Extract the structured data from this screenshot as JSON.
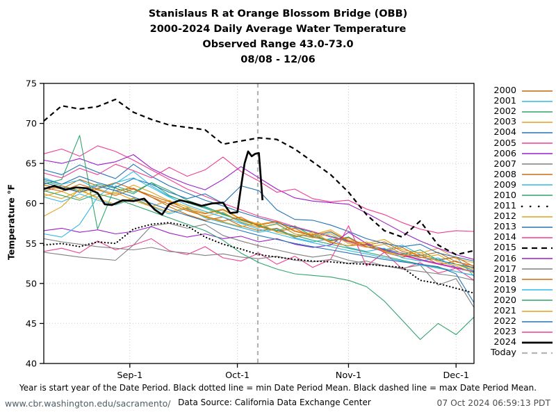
{
  "title": {
    "line1": "Stanislaus R at Orange Blossom Bridge (OBB)",
    "line2": "2000-2024 Daily Average Water Temperature",
    "line3": "Observed Range 43.0-73.0",
    "line4": "08/08 - 12/06"
  },
  "footer": {
    "footnote": "Year is start year of the Date Period. Black dotted line = min Date Period Mean. Black dashed line = max Date Period Mean.",
    "site_url": "www.cbr.washington.edu/sacramento/",
    "data_source": "Data Source: California Data Exchange Center",
    "timestamp": "07 Oct 2024 06:59:13 PDT"
  },
  "chart_data": {
    "type": "line",
    "x_axis": {
      "start_label": "08/08",
      "end_label": "12/06",
      "total_days": 120,
      "ticks": [
        {
          "label": "Sep-1",
          "day": 24
        },
        {
          "label": "Oct-1",
          "day": 54
        },
        {
          "label": "Nov-1",
          "day": 85
        },
        {
          "label": "Dec-1",
          "day": 115
        }
      ]
    },
    "y_axis": {
      "label": "Temperature °F",
      "min": 40,
      "max": 75,
      "ticks": [
        75,
        70,
        65,
        60,
        55,
        50,
        45,
        40
      ],
      "gridlines": [
        70,
        65,
        60,
        55,
        50,
        45
      ]
    },
    "grid_color": "#c9c9c9",
    "today": {
      "label": "Today",
      "day": 59.7,
      "color": "#b3b3b3",
      "style": "dashed",
      "width": 2.2
    },
    "x_days": [
      0,
      5,
      10,
      15,
      20,
      25,
      30,
      35,
      40,
      45,
      50,
      55,
      60,
      65,
      70,
      75,
      80,
      85,
      90,
      95,
      100,
      105,
      110,
      115,
      120
    ],
    "series": [
      {
        "name": "2000",
        "color": "#c4660a",
        "style": "solid",
        "width": 1.1,
        "values": [
          62.3,
          61.8,
          63.0,
          62.2,
          61.6,
          61.9,
          60.8,
          59.6,
          58.6,
          57.9,
          58.3,
          57.2,
          56.6,
          56.9,
          55.8,
          56.2,
          55.1,
          54.7,
          54.9,
          53.9,
          53.3,
          53.6,
          52.4,
          52.8,
          51.9
        ]
      },
      {
        "name": "2001",
        "color": "#2eb8e6",
        "style": "solid",
        "width": 1.1,
        "values": [
          63.2,
          62.4,
          62.9,
          61.8,
          62.5,
          64.0,
          62.2,
          60.9,
          60.2,
          59.5,
          58.8,
          57.6,
          57.0,
          57.5,
          56.2,
          55.8,
          56.4,
          55.2,
          54.6,
          54.2,
          54.8,
          53.6,
          53.0,
          53.3,
          50.9
        ]
      },
      {
        "name": "2002",
        "color": "#2fa46c",
        "style": "solid",
        "width": 1.1,
        "values": [
          62.8,
          62.2,
          61.6,
          62.4,
          61.9,
          61.2,
          62.6,
          61.0,
          60.1,
          59.4,
          58.6,
          57.9,
          57.3,
          56.6,
          57.2,
          55.9,
          55.4,
          55.8,
          54.6,
          54.1,
          53.6,
          54.2,
          52.9,
          52.4,
          51.6
        ]
      },
      {
        "name": "2003",
        "color": "#e3a11c",
        "style": "solid",
        "width": 1.1,
        "values": [
          60.9,
          61.5,
          60.6,
          61.8,
          61.2,
          62.3,
          61.4,
          60.3,
          59.6,
          58.8,
          59.3,
          58.1,
          57.4,
          57.8,
          56.6,
          56.1,
          56.7,
          55.4,
          55.0,
          55.5,
          54.2,
          53.8,
          54.4,
          53.1,
          52.6
        ]
      },
      {
        "name": "2004",
        "color": "#2272b5",
        "style": "solid",
        "width": 1.1,
        "values": [
          64.2,
          63.6,
          64.8,
          63.9,
          63.1,
          64.9,
          63.4,
          62.2,
          61.3,
          60.4,
          59.7,
          58.9,
          58.2,
          57.6,
          57.0,
          56.4,
          55.9,
          55.3,
          54.8,
          54.3,
          53.8,
          53.3,
          52.9,
          52.4,
          52.0
        ]
      },
      {
        "name": "2005",
        "color": "#ef3d8f",
        "style": "solid",
        "width": 1.1,
        "values": [
          66.2,
          66.8,
          65.9,
          67.2,
          66.5,
          65.4,
          64.2,
          63.0,
          61.8,
          60.9,
          60.0,
          59.2,
          58.4,
          57.8,
          57.1,
          56.5,
          55.8,
          55.2,
          54.6,
          54.0,
          53.5,
          52.9,
          52.4,
          51.9,
          51.4
        ]
      },
      {
        "name": "2006",
        "color": "#9c1ccb",
        "style": "solid",
        "width": 1.1,
        "values": [
          65.4,
          65.0,
          65.6,
          64.8,
          65.2,
          66.1,
          64.4,
          63.3,
          62.4,
          61.7,
          63.0,
          64.6,
          63.2,
          61.8,
          60.7,
          60.3,
          60.1,
          59.9,
          58.8,
          57.6,
          56.4,
          55.3,
          54.4,
          53.6,
          53.0
        ]
      },
      {
        "name": "2007",
        "color": "#7f7f7f",
        "style": "solid",
        "width": 1.1,
        "values": [
          53.9,
          53.6,
          53.3,
          53.1,
          52.9,
          54.8,
          57.2,
          57.5,
          56.9,
          57.4,
          56.0,
          55.3,
          54.7,
          54.2,
          53.7,
          53.3,
          53.6,
          52.9,
          52.5,
          52.2,
          51.8,
          51.5,
          51.2,
          50.9,
          50.4
        ]
      },
      {
        "name": "2008",
        "color": "#d2690e",
        "style": "solid",
        "width": 1.1,
        "values": [
          61.5,
          62.2,
          61.4,
          61.9,
          62.6,
          61.8,
          61.0,
          60.2,
          59.3,
          58.7,
          59.2,
          58.0,
          57.3,
          57.7,
          56.5,
          56.0,
          56.5,
          55.3,
          54.8,
          55.2,
          54.0,
          53.5,
          53.9,
          52.7,
          52.2
        ]
      },
      {
        "name": "2009",
        "color": "#2eb8e6",
        "style": "solid",
        "width": 1.1,
        "values": [
          60.8,
          60.2,
          61.2,
          60.4,
          59.8,
          60.6,
          59.6,
          58.7,
          59.4,
          58.2,
          57.6,
          57.0,
          56.4,
          56.8,
          55.7,
          55.2,
          55.6,
          54.5,
          54.0,
          54.4,
          53.2,
          52.8,
          53.2,
          52.0,
          51.4
        ]
      },
      {
        "name": "2010",
        "color": "#2fa46c",
        "style": "solid",
        "width": 1.1,
        "values": [
          62.4,
          63.0,
          68.5,
          56.8,
          62.2,
          61.4,
          62.6,
          61.6,
          60.4,
          59.6,
          58.7,
          57.9,
          57.2,
          56.6,
          56.0,
          55.4,
          54.9,
          54.4,
          53.9,
          53.4,
          52.9,
          52.4,
          52.0,
          51.5,
          51.0
        ]
      },
      {
        "name": "2011",
        "color": "#000000",
        "style": "dotted",
        "width": 2.2,
        "values": [
          54.8,
          55.0,
          54.6,
          55.2,
          55.0,
          56.8,
          57.4,
          57.6,
          57.2,
          55.8,
          54.9,
          54.3,
          53.6,
          53.3,
          53.0,
          52.8,
          52.7,
          52.5,
          52.4,
          52.2,
          52.0,
          50.4,
          50.0,
          49.4,
          48.8
        ]
      },
      {
        "name": "2012",
        "color": "#e3a11c",
        "style": "solid",
        "width": 1.1,
        "values": [
          61.2,
          60.6,
          61.6,
          60.8,
          61.4,
          60.4,
          59.6,
          60.4,
          59.2,
          58.4,
          58.9,
          57.7,
          57.0,
          57.4,
          56.2,
          55.7,
          56.2,
          55.0,
          54.5,
          54.9,
          53.7,
          53.2,
          53.6,
          52.4,
          51.8
        ]
      },
      {
        "name": "2013",
        "color": "#2272b5",
        "style": "solid",
        "width": 1.1,
        "values": [
          63.0,
          62.4,
          63.4,
          62.6,
          62.0,
          63.1,
          62.4,
          61.4,
          60.6,
          61.2,
          60.0,
          62.2,
          61.6,
          59.2,
          58.0,
          57.9,
          57.3,
          56.5,
          55.6,
          55.0,
          54.6,
          54.9,
          53.8,
          53.3,
          52.8
        ]
      },
      {
        "name": "2014",
        "color": "#ef3d8f",
        "style": "solid",
        "width": 1.1,
        "values": [
          54.0,
          54.4,
          53.8,
          55.3,
          54.2,
          54.8,
          55.6,
          54.1,
          53.6,
          54.6,
          53.2,
          52.8,
          53.8,
          52.4,
          53.4,
          52.0,
          53.0,
          57.2,
          52.2,
          53.9,
          51.8,
          52.6,
          51.3,
          51.9,
          50.4
        ]
      },
      {
        "name": "2015",
        "color": "#000000",
        "style": "dashed",
        "width": 2.2,
        "values": [
          70.3,
          72.2,
          71.8,
          72.1,
          73.0,
          71.4,
          70.5,
          69.8,
          69.5,
          69.2,
          67.4,
          67.8,
          68.2,
          68.0,
          66.8,
          65.2,
          63.6,
          61.4,
          58.6,
          56.6,
          55.8,
          57.8,
          54.8,
          53.6,
          54.1
        ]
      },
      {
        "name": "2016",
        "color": "#9c1ccb",
        "style": "solid",
        "width": 1.1,
        "values": [
          56.6,
          56.9,
          56.4,
          56.7,
          56.2,
          56.5,
          57.1,
          56.3,
          55.8,
          56.2,
          55.6,
          55.9,
          55.2,
          55.6,
          54.9,
          54.5,
          54.8,
          56.4,
          55.0,
          54.2,
          53.6,
          53.0,
          52.5,
          52.0,
          51.5
        ]
      },
      {
        "name": "2017",
        "color": "#7f7f7f",
        "style": "solid",
        "width": 1.1,
        "values": [
          55.6,
          55.2,
          54.9,
          54.6,
          54.4,
          54.2,
          54.5,
          54.0,
          53.8,
          53.5,
          53.7,
          53.3,
          53.1,
          53.4,
          52.9,
          52.7,
          53.0,
          52.5,
          52.8,
          52.2,
          51.9,
          52.3,
          49.8,
          50.6,
          47.0
        ]
      },
      {
        "name": "2018",
        "color": "#d2690e",
        "style": "solid",
        "width": 1.1,
        "values": [
          62.0,
          61.5,
          62.4,
          61.7,
          61.0,
          61.8,
          60.8,
          59.9,
          59.1,
          58.4,
          57.8,
          58.3,
          57.1,
          56.5,
          56.9,
          55.8,
          55.3,
          55.7,
          54.6,
          54.1,
          54.5,
          53.3,
          52.9,
          53.3,
          52.1
        ]
      },
      {
        "name": "2019",
        "color": "#2eb8e6",
        "style": "solid",
        "width": 1.1,
        "values": [
          56.2,
          55.8,
          57.4,
          60.8,
          62.6,
          63.2,
          62.0,
          60.8,
          59.8,
          59.0,
          58.3,
          57.5,
          56.8,
          56.2,
          55.6,
          55.1,
          54.6,
          54.1,
          53.7,
          53.2,
          52.8,
          52.3,
          51.9,
          51.5,
          51.0
        ]
      },
      {
        "name": "2020",
        "color": "#2fa46c",
        "style": "solid",
        "width": 1.1,
        "values": [
          61.6,
          61.0,
          60.4,
          61.2,
          60.6,
          59.8,
          59.0,
          58.2,
          57.4,
          56.6,
          55.4,
          53.8,
          52.6,
          51.8,
          51.2,
          51.0,
          50.8,
          50.4,
          49.6,
          47.8,
          45.4,
          43.0,
          45.0,
          43.6,
          45.8
        ]
      },
      {
        "name": "2021",
        "color": "#e3a11c",
        "style": "solid",
        "width": 1.1,
        "values": [
          58.4,
          59.6,
          61.8,
          60.6,
          59.9,
          60.7,
          59.7,
          58.9,
          59.5,
          58.3,
          57.7,
          57.1,
          57.6,
          56.4,
          55.9,
          56.4,
          55.2,
          54.7,
          55.2,
          54.0,
          53.5,
          53.9,
          52.7,
          52.2,
          51.3
        ]
      },
      {
        "name": "2022",
        "color": "#2272b5",
        "style": "solid",
        "width": 1.1,
        "values": [
          62.6,
          62.0,
          61.4,
          62.2,
          61.6,
          60.8,
          60.0,
          59.2,
          58.5,
          57.8,
          57.2,
          56.6,
          56.0,
          55.5,
          55.0,
          54.6,
          54.2,
          53.8,
          53.4,
          53.0,
          52.7,
          52.4,
          52.1,
          51.2,
          47.6
        ]
      },
      {
        "name": "2023",
        "color": "#ef3d8f",
        "style": "solid",
        "width": 1.1,
        "values": [
          63.8,
          63.2,
          64.4,
          63.6,
          64.9,
          64.1,
          63.2,
          64.5,
          63.4,
          64.2,
          65.8,
          64.0,
          62.8,
          61.4,
          61.8,
          60.6,
          60.2,
          60.4,
          59.3,
          58.6,
          57.6,
          56.8,
          56.3,
          56.6,
          56.5
        ]
      },
      {
        "name": "2024",
        "color": "#000000",
        "style": "solid",
        "width": 2.7,
        "x_days": [
          0,
          3,
          6,
          9,
          12,
          15,
          17,
          19,
          22,
          25,
          28,
          31,
          33,
          35,
          38,
          41,
          44,
          47,
          50,
          52,
          54,
          55,
          56,
          57,
          58,
          59,
          60,
          61
        ],
        "values": [
          61.8,
          62.2,
          61.7,
          62.0,
          61.9,
          61.3,
          59.9,
          59.8,
          60.4,
          60.3,
          60.6,
          59.2,
          58.6,
          59.9,
          60.4,
          60.1,
          59.7,
          60.0,
          60.1,
          58.8,
          58.9,
          62.0,
          65.0,
          66.5,
          65.9,
          66.2,
          66.3,
          60.4
        ]
      }
    ]
  }
}
